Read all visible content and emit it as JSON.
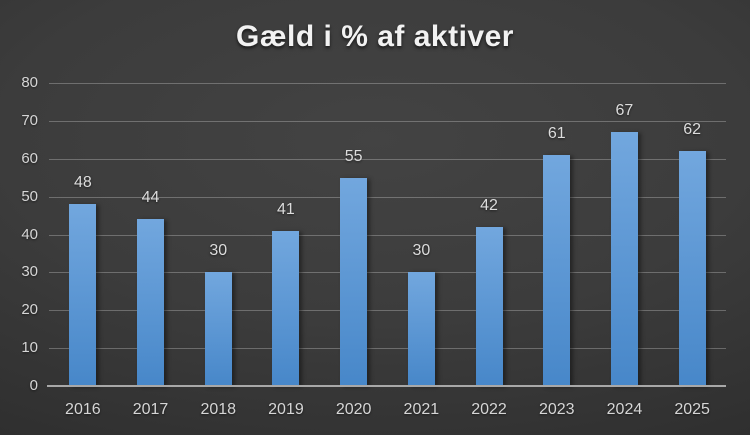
{
  "chart_data": {
    "type": "bar",
    "title": "Gæld i % af aktiver",
    "categories": [
      "2016",
      "2017",
      "2018",
      "2019",
      "2020",
      "2021",
      "2022",
      "2023",
      "2024",
      "2025"
    ],
    "values": [
      48,
      44,
      30,
      41,
      55,
      30,
      42,
      61,
      67,
      62
    ],
    "xlabel": "",
    "ylabel": "",
    "ylim": [
      0,
      80
    ],
    "yticks": [
      0,
      10,
      20,
      30,
      40,
      50,
      60,
      70,
      80
    ],
    "grid": true,
    "legend": false,
    "data_labels": true,
    "colors": {
      "bar_gradient_top": "#72A7DE",
      "bar_gradient_bottom": "#4787C9",
      "data_label": "#dcdcdc",
      "tick_label": "#d6d6d6",
      "gridline": "rgba(255,255,255,0.26)",
      "axis_line": "#a8a8a8",
      "title": "#f2f2f2"
    }
  }
}
